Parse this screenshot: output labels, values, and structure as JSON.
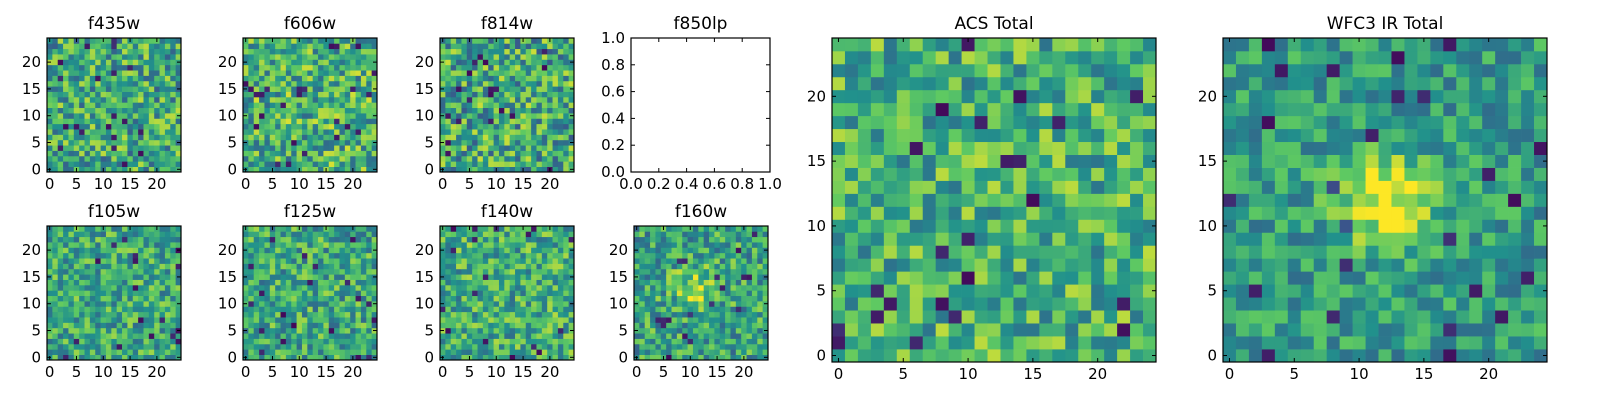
{
  "colormap": [
    "#440154",
    "#3b528b",
    "#21918c",
    "#5ec962",
    "#fde725"
  ],
  "chart_data": [
    {
      "id": "f435w",
      "type": "heatmap",
      "title": "f435w",
      "nx": 25,
      "ny": 25,
      "empty": false,
      "xticks": [
        0,
        5,
        10,
        15,
        20
      ],
      "yticks": [
        0,
        5,
        10,
        15,
        20
      ],
      "seed": 11,
      "bias": 0.6,
      "spread": 0.3
    },
    {
      "id": "f606w",
      "type": "heatmap",
      "title": "f606w",
      "nx": 25,
      "ny": 25,
      "empty": false,
      "xticks": [
        0,
        5,
        10,
        15,
        20
      ],
      "yticks": [
        0,
        5,
        10,
        15,
        20
      ],
      "seed": 23,
      "bias": 0.64,
      "spread": 0.3
    },
    {
      "id": "f814w",
      "type": "heatmap",
      "title": "f814w",
      "nx": 25,
      "ny": 25,
      "empty": false,
      "xticks": [
        0,
        5,
        10,
        15,
        20
      ],
      "yticks": [
        0,
        5,
        10,
        15,
        20
      ],
      "seed": 37,
      "bias": 0.6,
      "spread": 0.32
    },
    {
      "id": "f850lp",
      "type": "heatmap",
      "title": "f850lp",
      "nx": 0,
      "ny": 0,
      "empty": true,
      "xticks": [
        "0.0",
        "0.2",
        "0.4",
        "0.6",
        "0.8",
        "1.0"
      ],
      "yticks": [
        "0.0",
        "0.2",
        "0.4",
        "0.6",
        "0.8",
        "1.0"
      ],
      "xlim": [
        0,
        1
      ],
      "ylim": [
        0,
        1
      ]
    },
    {
      "id": "acs_total",
      "type": "heatmap",
      "title": "ACS Total",
      "nx": 25,
      "ny": 25,
      "empty": false,
      "xticks": [
        0,
        5,
        10,
        15,
        20
      ],
      "yticks": [
        0,
        5,
        10,
        15,
        20
      ],
      "seed": 51,
      "bias": 0.64,
      "spread": 0.26
    },
    {
      "id": "wfc3_ir_total",
      "type": "heatmap",
      "title": "WFC3 IR Total",
      "nx": 25,
      "ny": 25,
      "empty": false,
      "xticks": [
        0,
        5,
        10,
        15,
        20
      ],
      "yticks": [
        0,
        5,
        10,
        15,
        20
      ],
      "seed": 67,
      "bias": 0.55,
      "spread": 0.2,
      "blob": {
        "cx": 12,
        "cy": 12,
        "r": 2.6,
        "amp": 0.45
      }
    },
    {
      "id": "f105w",
      "type": "heatmap",
      "title": "f105w",
      "nx": 25,
      "ny": 25,
      "empty": false,
      "xticks": [
        0,
        5,
        10,
        15,
        20
      ],
      "yticks": [
        0,
        5,
        10,
        15,
        20
      ],
      "seed": 79,
      "bias": 0.6,
      "spread": 0.25
    },
    {
      "id": "f125w",
      "type": "heatmap",
      "title": "f125w",
      "nx": 25,
      "ny": 25,
      "empty": false,
      "xticks": [
        0,
        5,
        10,
        15,
        20
      ],
      "yticks": [
        0,
        5,
        10,
        15,
        20
      ],
      "seed": 83,
      "bias": 0.6,
      "spread": 0.26
    },
    {
      "id": "f140w",
      "type": "heatmap",
      "title": "f140w",
      "nx": 25,
      "ny": 25,
      "empty": false,
      "xticks": [
        0,
        5,
        10,
        15,
        20
      ],
      "yticks": [
        0,
        5,
        10,
        15,
        20
      ],
      "seed": 97,
      "bias": 0.62,
      "spread": 0.26
    },
    {
      "id": "f160w",
      "type": "heatmap",
      "title": "f160w",
      "nx": 25,
      "ny": 25,
      "empty": false,
      "xticks": [
        0,
        5,
        10,
        15,
        20
      ],
      "yticks": [
        0,
        5,
        10,
        15,
        20
      ],
      "seed": 101,
      "bias": 0.58,
      "spread": 0.26,
      "blob": {
        "cx": 11,
        "cy": 13,
        "r": 3.0,
        "amp": 0.25
      }
    }
  ]
}
